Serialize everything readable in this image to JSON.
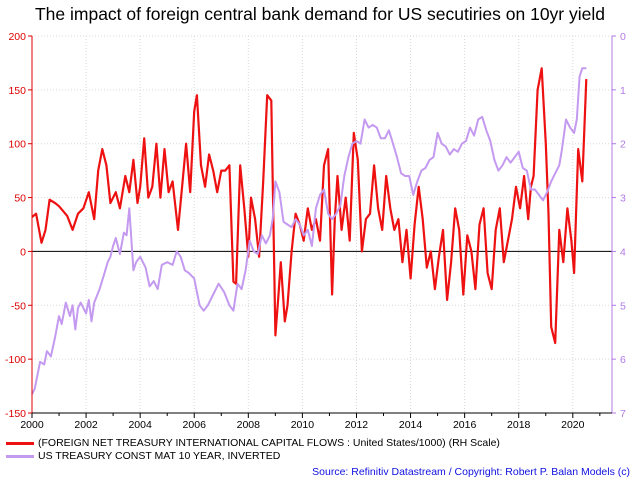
{
  "title": "The impact of foreign central bank demand for US secutiries on 10yr yield",
  "source": "Source: Refinitiv Datastream / Copyright: Robert P. Balan Models (c)",
  "colors": {
    "flows": "#ee1111",
    "yield": "#c49af0",
    "left_axis": "#dd0000",
    "right_axis": "#b27ae6",
    "x_axis": "#000000"
  },
  "chart_data": {
    "type": "line",
    "title": "The impact of foreign central bank demand for US secutiries on 10yr yield",
    "x_ticks": [
      "2000",
      "2002",
      "2004",
      "2006",
      "2008",
      "2010",
      "2012",
      "2014",
      "2016",
      "2018",
      "2020"
    ],
    "x_range": [
      2000.0,
      2021.45
    ],
    "left_axis": {
      "ticks": [
        "200",
        "150",
        "100",
        "50",
        "0",
        "-50",
        "-100",
        "-150"
      ],
      "range": [
        -150,
        200
      ]
    },
    "right_axis": {
      "ticks": [
        "0",
        "1",
        "2",
        "3",
        "4",
        "5",
        "6",
        "7"
      ],
      "range": [
        0,
        7
      ],
      "inverted": true
    },
    "grid": true,
    "legend_position": "bottom-left",
    "series": [
      {
        "name": "(FOREIGN NET TREASURY INTERNATIONAL CAPITAL FLOWS : United States/1000) (RH Scale)",
        "axis": "left",
        "color": "#ee1111",
        "x": [
          2000.0,
          2000.15,
          2000.35,
          2000.5,
          2000.65,
          2000.85,
          2001.0,
          2001.3,
          2001.5,
          2001.7,
          2001.9,
          2002.1,
          2002.3,
          2002.45,
          2002.6,
          2002.75,
          2002.9,
          2003.1,
          2003.25,
          2003.45,
          2003.6,
          2003.75,
          2003.9,
          2004.0,
          2004.15,
          2004.3,
          2004.45,
          2004.6,
          2004.75,
          2004.9,
          2005.05,
          2005.2,
          2005.4,
          2005.55,
          2005.7,
          2005.85,
          2006.0,
          2006.1,
          2006.25,
          2006.4,
          2006.55,
          2006.7,
          2006.85,
          2007.0,
          2007.15,
          2007.3,
          2007.45,
          2007.55,
          2007.7,
          2007.85,
          2008.0,
          2008.1,
          2008.25,
          2008.4,
          2008.55,
          2008.7,
          2008.85,
          2009.0,
          2009.1,
          2009.2,
          2009.35,
          2009.45,
          2009.6,
          2009.75,
          2009.9,
          2010.05,
          2010.2,
          2010.35,
          2010.5,
          2010.65,
          2010.8,
          2010.95,
          2011.1,
          2011.2,
          2011.3,
          2011.45,
          2011.6,
          2011.75,
          2011.9,
          2012.05,
          2012.2,
          2012.35,
          2012.5,
          2012.65,
          2012.8,
          2012.95,
          2013.1,
          2013.25,
          2013.4,
          2013.55,
          2013.7,
          2013.85,
          2014.0,
          2014.15,
          2014.3,
          2014.45,
          2014.6,
          2014.75,
          2014.9,
          2015.05,
          2015.2,
          2015.35,
          2015.5,
          2015.65,
          2015.8,
          2015.95,
          2016.1,
          2016.25,
          2016.4,
          2016.55,
          2016.7,
          2016.85,
          2017.0,
          2017.15,
          2017.3,
          2017.45,
          2017.6,
          2017.75,
          2017.9,
          2018.05,
          2018.2,
          2018.35,
          2018.45,
          2018.55,
          2018.7,
          2018.85,
          2019.0,
          2019.1,
          2019.2,
          2019.35,
          2019.5,
          2019.65,
          2019.8,
          2019.95,
          2020.05,
          2020.2,
          2020.35,
          2020.5
        ],
        "values": [
          32,
          35,
          8,
          20,
          48,
          45,
          42,
          33,
          20,
          35,
          40,
          55,
          30,
          75,
          95,
          80,
          45,
          55,
          40,
          70,
          55,
          85,
          45,
          60,
          105,
          50,
          60,
          100,
          50,
          95,
          55,
          65,
          20,
          60,
          100,
          55,
          130,
          145,
          80,
          60,
          90,
          75,
          55,
          75,
          75,
          80,
          -28,
          -30,
          80,
          40,
          -5,
          50,
          30,
          -5,
          65,
          145,
          140,
          -78,
          -45,
          -10,
          -65,
          -50,
          0,
          35,
          25,
          10,
          40,
          20,
          30,
          10,
          80,
          95,
          -40,
          30,
          70,
          20,
          50,
          10,
          110,
          85,
          0,
          30,
          35,
          80,
          40,
          20,
          70,
          40,
          20,
          30,
          -10,
          20,
          -25,
          25,
          60,
          30,
          -15,
          0,
          -35,
          -5,
          20,
          -45,
          -10,
          40,
          20,
          -40,
          15,
          0,
          -35,
          25,
          40,
          -20,
          -35,
          20,
          40,
          -10,
          10,
          30,
          60,
          40,
          70,
          30,
          60,
          70,
          150,
          170,
          100,
          35,
          -70,
          -85,
          20,
          -10,
          40,
          10,
          -20,
          95,
          65,
          160
        ]
      },
      {
        "name": "US TREASURY CONST MAT 10 YEAR, INVERTED",
        "axis": "right",
        "color": "#c49af0",
        "x": [
          2000.0,
          2000.1,
          2000.2,
          2000.3,
          2000.45,
          2000.55,
          2000.7,
          2000.85,
          2001.0,
          2001.1,
          2001.25,
          2001.4,
          2001.5,
          2001.6,
          2001.7,
          2001.8,
          2002.0,
          2002.1,
          2002.2,
          2002.3,
          2002.5,
          2002.65,
          2002.8,
          2002.9,
          2003.0,
          2003.1,
          2003.25,
          2003.4,
          2003.5,
          2003.6,
          2003.75,
          2003.85,
          2004.0,
          2004.2,
          2004.35,
          2004.5,
          2004.65,
          2004.8,
          2005.0,
          2005.2,
          2005.35,
          2005.5,
          2005.65,
          2005.8,
          2006.0,
          2006.2,
          2006.35,
          2006.5,
          2006.7,
          2006.9,
          2007.1,
          2007.3,
          2007.45,
          2007.6,
          2007.75,
          2007.9,
          2008.05,
          2008.2,
          2008.35,
          2008.5,
          2008.65,
          2008.8,
          2008.9,
          2009.0,
          2009.15,
          2009.3,
          2009.45,
          2009.6,
          2009.75,
          2009.9,
          2010.05,
          2010.2,
          2010.35,
          2010.5,
          2010.65,
          2010.8,
          2010.95,
          2011.1,
          2011.25,
          2011.4,
          2011.55,
          2011.7,
          2011.85,
          2012.0,
          2012.15,
          2012.3,
          2012.45,
          2012.6,
          2012.75,
          2012.9,
          2013.05,
          2013.2,
          2013.35,
          2013.5,
          2013.65,
          2013.8,
          2013.95,
          2014.1,
          2014.25,
          2014.4,
          2014.55,
          2014.7,
          2014.85,
          2015.0,
          2015.15,
          2015.3,
          2015.45,
          2015.6,
          2015.75,
          2015.9,
          2016.05,
          2016.2,
          2016.35,
          2016.5,
          2016.65,
          2016.8,
          2016.95,
          2017.1,
          2017.25,
          2017.4,
          2017.55,
          2017.7,
          2017.85,
          2018.0,
          2018.15,
          2018.3,
          2018.45,
          2018.6,
          2018.75,
          2018.9,
          2019.05,
          2019.2,
          2019.35,
          2019.5,
          2019.6,
          2019.75,
          2019.9,
          2020.05,
          2020.15,
          2020.25,
          2020.35,
          2020.5
        ],
        "values": [
          6.65,
          6.55,
          6.3,
          6.05,
          6.1,
          5.85,
          5.95,
          5.6,
          5.2,
          5.35,
          4.95,
          5.2,
          5.0,
          5.45,
          5.05,
          4.95,
          5.15,
          4.9,
          5.3,
          4.95,
          4.7,
          4.45,
          4.2,
          4.1,
          3.9,
          3.75,
          4.05,
          3.65,
          3.7,
          3.2,
          4.35,
          4.2,
          4.1,
          4.3,
          4.65,
          4.55,
          4.7,
          4.25,
          4.2,
          4.25,
          4.0,
          4.1,
          4.35,
          4.4,
          4.5,
          5.0,
          5.1,
          5.0,
          4.8,
          4.6,
          4.75,
          5.0,
          5.1,
          4.6,
          4.7,
          4.35,
          3.8,
          4.0,
          4.05,
          3.7,
          3.85,
          3.7,
          3.4,
          2.7,
          2.9,
          3.45,
          3.5,
          3.55,
          3.4,
          3.5,
          3.7,
          3.6,
          3.9,
          3.2,
          2.95,
          2.85,
          3.3,
          3.4,
          3.3,
          3.15,
          2.6,
          2.25,
          2.0,
          1.95,
          2.0,
          1.55,
          1.7,
          1.65,
          1.7,
          1.9,
          1.9,
          1.75,
          2.0,
          2.25,
          2.55,
          2.6,
          2.6,
          2.95,
          2.7,
          2.5,
          2.45,
          2.3,
          2.25,
          1.8,
          2.0,
          2.05,
          2.2,
          2.1,
          2.15,
          2.0,
          1.95,
          1.7,
          1.85,
          1.55,
          1.5,
          1.75,
          1.95,
          2.3,
          2.5,
          2.4,
          2.25,
          2.35,
          2.25,
          2.15,
          2.45,
          2.5,
          2.85,
          2.85,
          2.95,
          3.05,
          2.9,
          2.7,
          2.55,
          2.4,
          2.1,
          1.55,
          1.7,
          1.8,
          1.55,
          0.75,
          0.6,
          0.6
        ]
      }
    ]
  }
}
